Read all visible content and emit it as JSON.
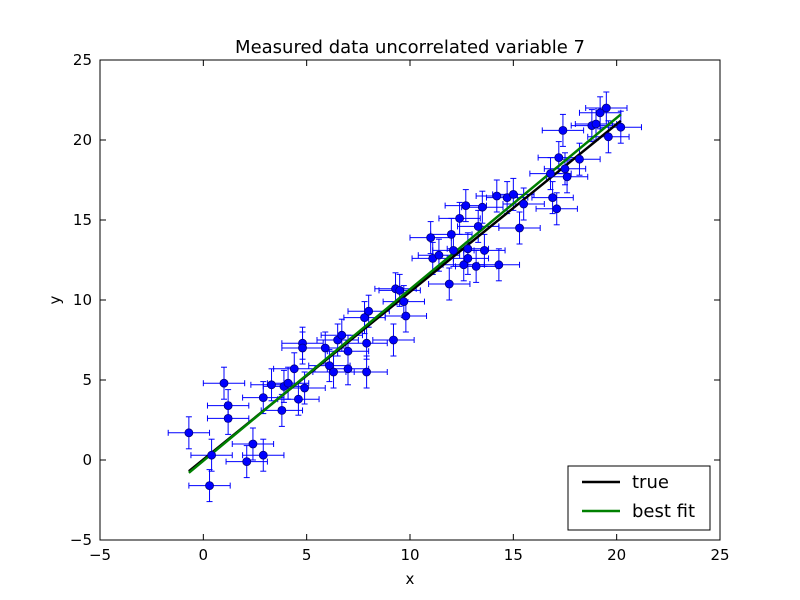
{
  "chart_data": {
    "type": "scatter",
    "title": "Measured data uncorrelated variable 7",
    "xlabel": "x",
    "ylabel": "y",
    "xlim": [
      -5,
      25
    ],
    "ylim": [
      -5,
      25
    ],
    "xticks": [
      "−5",
      "0",
      "5",
      "10",
      "15",
      "20",
      "25"
    ],
    "yticks": [
      "−5",
      "0",
      "5",
      "10",
      "15",
      "20",
      "25"
    ],
    "xtick_values": [
      -5,
      0,
      5,
      10,
      15,
      20,
      25
    ],
    "ytick_values": [
      -5,
      0,
      5,
      10,
      15,
      20,
      25
    ],
    "grid": false,
    "legend_position": "lower right",
    "colors": {
      "points": "#0000ff",
      "true": "#000000",
      "best_fit": "#008000"
    },
    "error_x": 1.0,
    "error_y": 1.0,
    "lines": [
      {
        "name": "true",
        "x": [
          -0.7,
          20.2
        ],
        "y": [
          -0.7,
          21.2
        ]
      },
      {
        "name": "best fit",
        "x": [
          -0.7,
          20.2
        ],
        "y": [
          -0.8,
          21.6
        ]
      }
    ],
    "points": [
      {
        "x": -0.7,
        "y": 1.7
      },
      {
        "x": 0.3,
        "y": -1.6
      },
      {
        "x": 0.4,
        "y": 0.3
      },
      {
        "x": 1.0,
        "y": 4.8
      },
      {
        "x": 1.2,
        "y": 3.4
      },
      {
        "x": 1.2,
        "y": 2.6
      },
      {
        "x": 2.1,
        "y": -0.1
      },
      {
        "x": 2.4,
        "y": 1.0
      },
      {
        "x": 2.9,
        "y": 0.3
      },
      {
        "x": 2.9,
        "y": 3.9
      },
      {
        "x": 3.3,
        "y": 4.7
      },
      {
        "x": 3.8,
        "y": 3.1
      },
      {
        "x": 3.9,
        "y": 4.6
      },
      {
        "x": 4.1,
        "y": 4.8
      },
      {
        "x": 4.4,
        "y": 5.7
      },
      {
        "x": 4.6,
        "y": 3.8
      },
      {
        "x": 4.8,
        "y": 7.3
      },
      {
        "x": 4.8,
        "y": 7.0
      },
      {
        "x": 4.9,
        "y": 4.5
      },
      {
        "x": 5.9,
        "y": 7.0
      },
      {
        "x": 6.1,
        "y": 5.9
      },
      {
        "x": 6.3,
        "y": 5.5
      },
      {
        "x": 6.5,
        "y": 7.5
      },
      {
        "x": 6.7,
        "y": 7.8
      },
      {
        "x": 7.0,
        "y": 6.8
      },
      {
        "x": 7.0,
        "y": 5.7
      },
      {
        "x": 7.8,
        "y": 8.9
      },
      {
        "x": 7.9,
        "y": 5.5
      },
      {
        "x": 7.9,
        "y": 7.3
      },
      {
        "x": 8.0,
        "y": 9.3
      },
      {
        "x": 9.2,
        "y": 7.5
      },
      {
        "x": 9.3,
        "y": 10.7
      },
      {
        "x": 9.5,
        "y": 10.6
      },
      {
        "x": 9.7,
        "y": 9.9
      },
      {
        "x": 9.8,
        "y": 9.0
      },
      {
        "x": 11.0,
        "y": 13.9
      },
      {
        "x": 11.1,
        "y": 12.6
      },
      {
        "x": 11.4,
        "y": 12.8
      },
      {
        "x": 11.9,
        "y": 11.0
      },
      {
        "x": 12.0,
        "y": 14.1
      },
      {
        "x": 12.1,
        "y": 13.1
      },
      {
        "x": 12.4,
        "y": 15.1
      },
      {
        "x": 12.6,
        "y": 12.2
      },
      {
        "x": 12.7,
        "y": 15.9
      },
      {
        "x": 12.8,
        "y": 13.2
      },
      {
        "x": 12.8,
        "y": 12.6
      },
      {
        "x": 13.2,
        "y": 12.1
      },
      {
        "x": 13.3,
        "y": 14.6
      },
      {
        "x": 13.5,
        "y": 15.8
      },
      {
        "x": 13.6,
        "y": 13.1
      },
      {
        "x": 14.2,
        "y": 16.5
      },
      {
        "x": 14.3,
        "y": 12.2
      },
      {
        "x": 14.7,
        "y": 16.4
      },
      {
        "x": 15.0,
        "y": 16.6
      },
      {
        "x": 15.3,
        "y": 14.5
      },
      {
        "x": 15.5,
        "y": 16.0
      },
      {
        "x": 16.8,
        "y": 17.9
      },
      {
        "x": 16.9,
        "y": 16.4
      },
      {
        "x": 17.1,
        "y": 15.7
      },
      {
        "x": 17.2,
        "y": 18.9
      },
      {
        "x": 17.4,
        "y": 20.6
      },
      {
        "x": 17.5,
        "y": 18.2
      },
      {
        "x": 17.6,
        "y": 17.7
      },
      {
        "x": 18.2,
        "y": 18.8
      },
      {
        "x": 18.8,
        "y": 20.9
      },
      {
        "x": 19.0,
        "y": 21.0
      },
      {
        "x": 19.2,
        "y": 21.7
      },
      {
        "x": 19.5,
        "y": 22.0
      },
      {
        "x": 19.6,
        "y": 20.2
      },
      {
        "x": 20.2,
        "y": 20.8
      }
    ]
  }
}
